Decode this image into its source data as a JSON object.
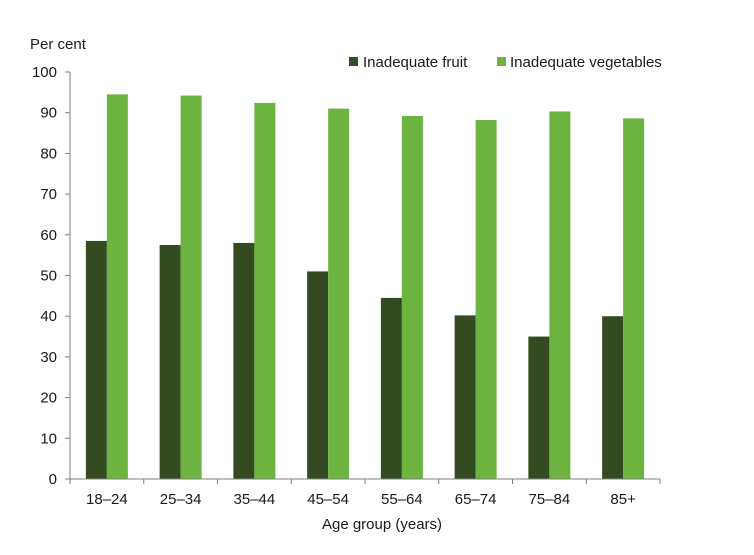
{
  "chart_data": {
    "type": "bar",
    "title": "",
    "ylabel": "Per cent",
    "xlabel": "Age group (years)",
    "ylim": [
      0,
      100
    ],
    "yticks": [
      0,
      10,
      20,
      30,
      40,
      50,
      60,
      70,
      80,
      90,
      100
    ],
    "grid": false,
    "legend_position": "top-right",
    "categories": [
      "18–24",
      "25–34",
      "35–44",
      "45–54",
      "55–64",
      "65–74",
      "75–84",
      "85+"
    ],
    "series": [
      {
        "name": "Inadequate fruit",
        "color": "#344b22",
        "values": [
          58.5,
          57.5,
          58,
          51,
          44.5,
          40.2,
          35,
          40
        ]
      },
      {
        "name": "Inadequate vegetables",
        "color": "#6cb33f",
        "values": [
          94.5,
          94.2,
          92.4,
          91,
          89.2,
          88.2,
          90.3,
          88.6
        ]
      }
    ]
  }
}
